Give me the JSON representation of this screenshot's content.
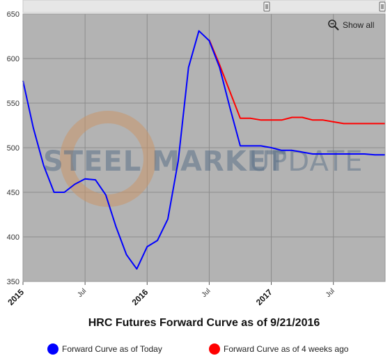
{
  "zoom_control": {
    "label": "Show all",
    "icon": "zoom-out-icon"
  },
  "watermark": {
    "bold_text": "STEEL MARKET",
    "light_text": "UPDATE"
  },
  "colors": {
    "plot_bg": "#b3b3b3",
    "today": "#0000ff",
    "four_weeks": "#ff0000",
    "grid": "#8c8c8c"
  },
  "chart_data": {
    "type": "line",
    "title": "HRC Futures Forward Curve as of 9/21/2016",
    "xlabel": "",
    "ylabel": "",
    "ylim": [
      350,
      650
    ],
    "yticks": [
      350,
      400,
      450,
      500,
      550,
      600,
      650
    ],
    "x_unit": "months since 2015-01",
    "xlim": [
      0,
      35
    ],
    "xticks": [
      {
        "value": 0,
        "label": "2015",
        "major": true
      },
      {
        "value": 6,
        "label": "Jul",
        "major": false
      },
      {
        "value": 12,
        "label": "2016",
        "major": true
      },
      {
        "value": 18,
        "label": "Jul",
        "major": false
      },
      {
        "value": 24,
        "label": "2017",
        "major": true
      },
      {
        "value": 30,
        "label": "Jul",
        "major": false
      }
    ],
    "grid": true,
    "legend_position": "bottom",
    "series": [
      {
        "name": "Forward Curve as of Today",
        "color": "#0000ff",
        "points": [
          [
            0,
            575
          ],
          [
            1,
            522
          ],
          [
            2,
            480
          ],
          [
            3,
            450
          ],
          [
            4,
            450
          ],
          [
            5,
            459
          ],
          [
            6,
            465
          ],
          [
            7,
            464
          ],
          [
            8,
            447
          ],
          [
            9,
            411
          ],
          [
            10,
            380
          ],
          [
            11,
            364
          ],
          [
            12,
            389
          ],
          [
            13,
            396
          ],
          [
            14,
            420
          ],
          [
            15,
            485
          ],
          [
            16,
            590
          ],
          [
            17,
            631
          ],
          [
            18,
            620
          ],
          [
            19,
            590
          ],
          [
            20,
            545
          ],
          [
            21,
            502
          ],
          [
            22,
            502
          ],
          [
            23,
            502
          ],
          [
            24,
            500
          ],
          [
            25,
            497
          ],
          [
            26,
            497
          ],
          [
            27,
            495
          ],
          [
            28,
            493
          ],
          [
            29,
            493
          ],
          [
            30,
            493
          ],
          [
            31,
            493
          ],
          [
            32,
            493
          ],
          [
            33,
            493
          ],
          [
            34,
            492
          ],
          [
            35,
            492
          ]
        ]
      },
      {
        "name": "Forward Curve as of 4 weeks ago",
        "color": "#ff0000",
        "points": [
          [
            18,
            621
          ],
          [
            19,
            593
          ],
          [
            20,
            563
          ],
          [
            21,
            533
          ],
          [
            22,
            533
          ],
          [
            23,
            531
          ],
          [
            24,
            531
          ],
          [
            25,
            531
          ],
          [
            26,
            534
          ],
          [
            27,
            534
          ],
          [
            28,
            531
          ],
          [
            29,
            531
          ],
          [
            30,
            529
          ],
          [
            31,
            527
          ],
          [
            32,
            527
          ],
          [
            33,
            527
          ],
          [
            34,
            527
          ],
          [
            35,
            527
          ]
        ]
      }
    ]
  }
}
